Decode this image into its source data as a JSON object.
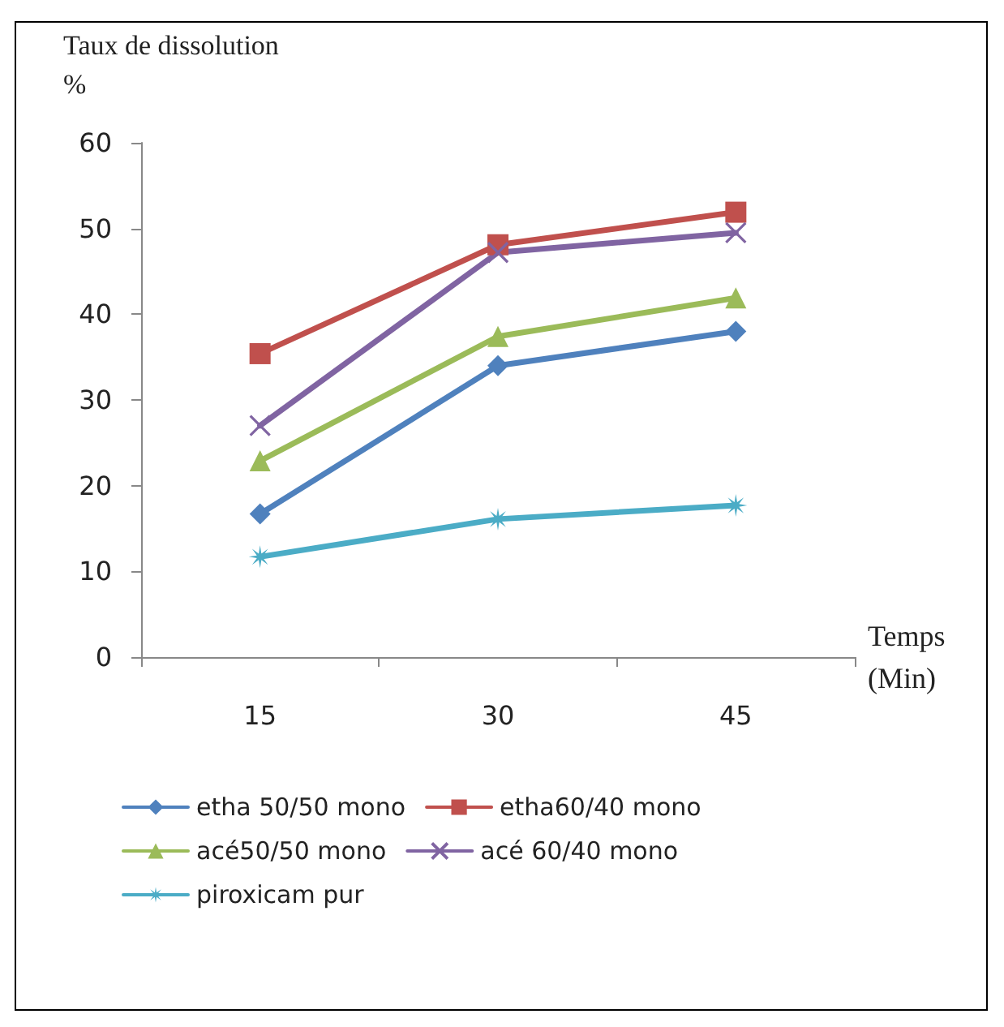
{
  "chart_data": {
    "type": "line",
    "ylabel": "Taux de dissolution\n%",
    "xlabel": "Temps\n(Min)",
    "categories": [
      "15",
      "30",
      "45"
    ],
    "ylim": [
      0,
      60
    ],
    "yticks": [
      0,
      10,
      20,
      30,
      40,
      50,
      60
    ],
    "grid": false,
    "legend": "bottom",
    "line_style": "solid",
    "series": [
      {
        "name": "etha 50/50 mono",
        "color": "#4f81bd",
        "marker": "diamond",
        "values": [
          16.7,
          34.0,
          38.0
        ]
      },
      {
        "name": "etha60/40 mono",
        "color": "#c0504d",
        "marker": "square",
        "values": [
          35.4,
          48.1,
          51.9
        ]
      },
      {
        "name": "acé50/50 mono",
        "color": "#9bbb59",
        "marker": "triangle",
        "values": [
          22.9,
          37.4,
          41.9
        ]
      },
      {
        "name": "acé 60/40 mono",
        "color": "#8064a2",
        "marker": "cross",
        "values": [
          27.0,
          47.2,
          49.5
        ]
      },
      {
        "name": "piroxicam pur",
        "color": "#4bacc6",
        "marker": "star",
        "values": [
          11.7,
          16.1,
          17.7
        ]
      }
    ]
  }
}
